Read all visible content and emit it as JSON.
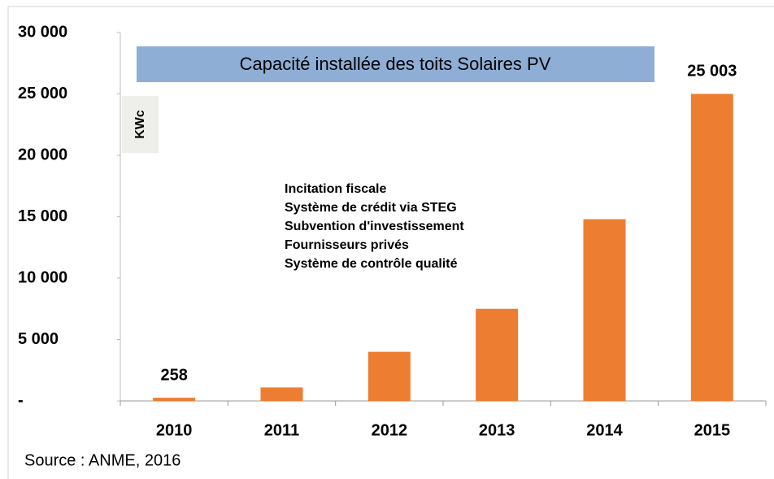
{
  "chart_data": {
    "type": "bar",
    "title": "Capacité installée des toits Solaires PV",
    "y_label": "KWc",
    "annotations": [
      "Incitation fiscale",
      "Système  de crédit via STEG",
      "Subvention d'investissement",
      "Fournisseurs privés",
      "Système  de contrôle qualité"
    ],
    "source": "Source : ANME, 2016",
    "categories": [
      "2010",
      "2011",
      "2012",
      "2013",
      "2014",
      "2015"
    ],
    "values": [
      258,
      1100,
      4000,
      7500,
      14800,
      25003
    ],
    "value_labels": [
      "258",
      null,
      null,
      null,
      null,
      "25 003"
    ],
    "color": "#ed7d31",
    "ylim": [
      0,
      30000
    ],
    "yticks": [
      {
        "value": 0,
        "label": "-"
      },
      {
        "value": 5000,
        "label": "5 000"
      },
      {
        "value": 10000,
        "label": "10 000"
      },
      {
        "value": 15000,
        "label": "15 000"
      },
      {
        "value": 20000,
        "label": "20 000"
      },
      {
        "value": 25000,
        "label": "25 000"
      },
      {
        "value": 30000,
        "label": "30 000"
      }
    ],
    "grid": false
  }
}
